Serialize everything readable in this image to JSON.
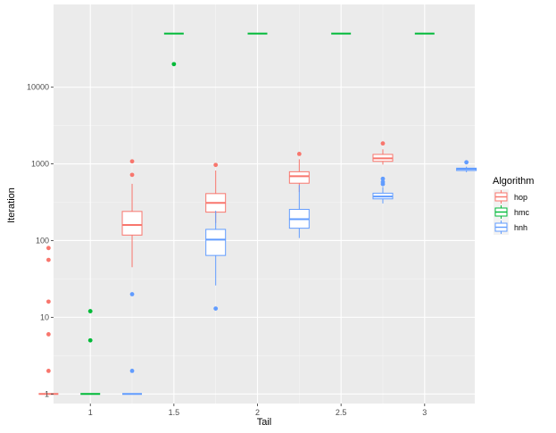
{
  "chart_data": {
    "type": "box",
    "xlabel": "Tail",
    "ylabel": "Iteration",
    "y_scale": "log10",
    "ylim": [
      0.75,
      120000
    ],
    "xlim": [
      0.78,
      3.3
    ],
    "x_ticks": [
      1,
      1.5,
      2,
      2.5,
      3
    ],
    "x_tick_labels": [
      "1",
      "1.5",
      "2",
      "2.5",
      "3"
    ],
    "y_ticks": [
      1,
      10,
      100,
      1000,
      10000
    ],
    "y_tick_labels": [
      "1",
      "10",
      "100",
      "1000",
      "10000"
    ],
    "grid": true,
    "legend": {
      "title": "Algorithm",
      "placement": "right",
      "entries": [
        {
          "name": "hop",
          "color": "#F8766D"
        },
        {
          "name": "hmc",
          "color": "#00BA38"
        },
        {
          "name": "hnh",
          "color": "#619CFF"
        }
      ]
    },
    "series": [
      {
        "name": "hop",
        "color": "#F8766D",
        "boxes": [
          {
            "x": 1,
            "min": 1,
            "q1": 1,
            "median": 1,
            "q3": 1,
            "max": 1,
            "outliers": [
              2,
              6,
              16,
              56,
              80
            ]
          },
          {
            "x": 1.5,
            "min": 45,
            "q1": 118,
            "median": 160,
            "q3": 240,
            "max": 550,
            "outliers": [
              720,
              1080
            ]
          },
          {
            "x": 2,
            "min": 170,
            "q1": 235,
            "median": 310,
            "q3": 410,
            "max": 820,
            "outliers": [
              970
            ]
          },
          {
            "x": 2.5,
            "min": 430,
            "q1": 560,
            "median": 690,
            "q3": 790,
            "max": 1150,
            "outliers": [
              1350
            ]
          },
          {
            "x": 3,
            "min": 980,
            "q1": 1080,
            "median": 1180,
            "q3": 1330,
            "max": 1550,
            "outliers": [
              1850
            ]
          }
        ]
      },
      {
        "name": "hmc",
        "color": "#00BA38",
        "boxes": [
          {
            "x": 1,
            "min": 1,
            "q1": 1,
            "median": 1,
            "q3": 1,
            "max": 1,
            "outliers": [
              5,
              12
            ]
          },
          {
            "x": 1.5,
            "min": 50000,
            "q1": 50000,
            "median": 50000,
            "q3": 50000,
            "max": 50000,
            "outliers": [
              20000
            ]
          },
          {
            "x": 2,
            "min": 50000,
            "q1": 50000,
            "median": 50000,
            "q3": 50000,
            "max": 50000,
            "outliers": []
          },
          {
            "x": 2.5,
            "min": 50000,
            "q1": 50000,
            "median": 50000,
            "q3": 50000,
            "max": 50000,
            "outliers": []
          },
          {
            "x": 3,
            "min": 50000,
            "q1": 50000,
            "median": 50000,
            "q3": 50000,
            "max": 50000,
            "outliers": []
          }
        ]
      },
      {
        "name": "hnh",
        "color": "#619CFF",
        "boxes": [
          {
            "x": 1,
            "min": 1,
            "q1": 1,
            "median": 1,
            "q3": 1,
            "max": 1,
            "outliers": [
              2,
              20
            ]
          },
          {
            "x": 1.5,
            "min": 26,
            "q1": 64,
            "median": 103,
            "q3": 140,
            "max": 245,
            "outliers": [
              13
            ]
          },
          {
            "x": 2,
            "min": 108,
            "q1": 145,
            "median": 190,
            "q3": 255,
            "max": 530,
            "outliers": []
          },
          {
            "x": 2.5,
            "min": 305,
            "q1": 350,
            "median": 375,
            "q3": 415,
            "max": 500,
            "outliers": [
              545,
              580,
              640
            ]
          },
          {
            "x": 3,
            "min": 780,
            "q1": 820,
            "median": 860,
            "q3": 880,
            "max": 920,
            "outliers": [
              1050
            ]
          }
        ]
      }
    ]
  }
}
